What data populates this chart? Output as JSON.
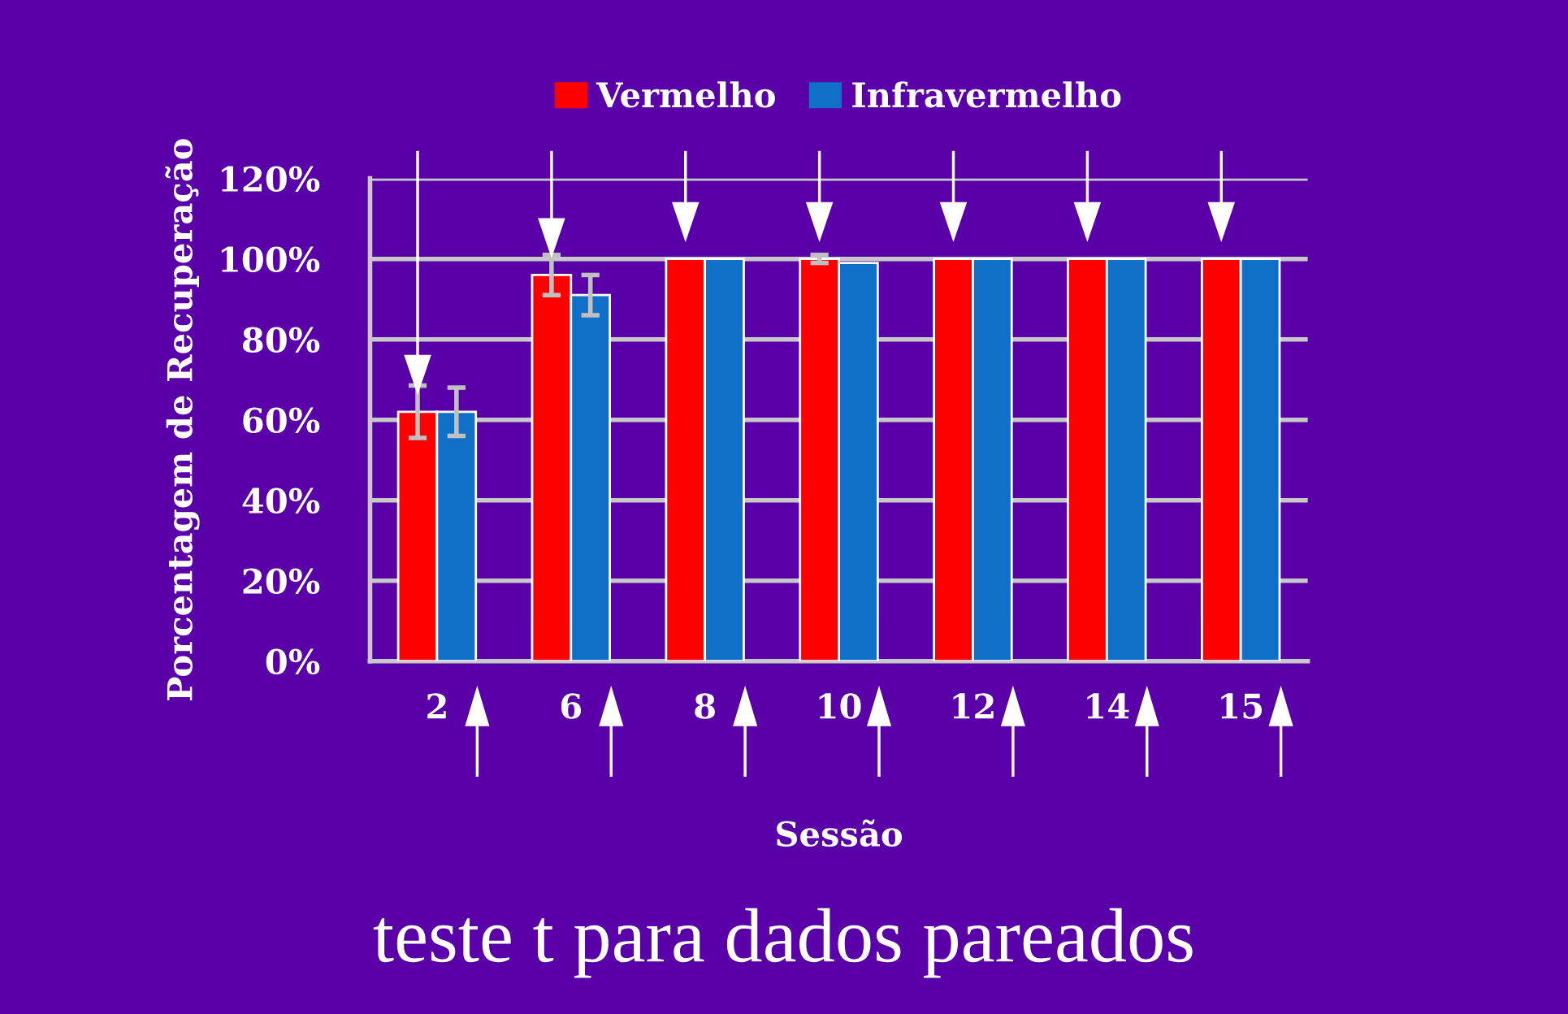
{
  "chart_data": {
    "type": "bar",
    "xlabel": "Sessão",
    "ylabel": "Porcentagem de Recuperação",
    "categories": [
      "2",
      "6",
      "8",
      "10",
      "12",
      "14",
      "15"
    ],
    "series": [
      {
        "name": "Vermelho",
        "color": "#ff0000",
        "values": [
          62,
          96,
          100,
          100,
          100,
          100,
          100
        ],
        "errors": [
          6.5,
          5,
          null,
          1,
          null,
          null,
          null
        ]
      },
      {
        "name": "Infravermelho",
        "color": "#1070c8",
        "values": [
          62,
          91,
          100,
          99,
          100,
          100,
          100
        ],
        "errors": [
          6,
          5,
          null,
          null,
          null,
          null,
          null
        ]
      }
    ],
    "ylim": [
      0,
      120
    ],
    "yticks": [
      {
        "value": 0,
        "label": "0%"
      },
      {
        "value": 20,
        "label": "20%"
      },
      {
        "value": 40,
        "label": "40%"
      },
      {
        "value": 60,
        "label": "60%"
      },
      {
        "value": 80,
        "label": "80%"
      },
      {
        "value": 100,
        "label": "100%"
      },
      {
        "value": 120,
        "label": "120%"
      }
    ],
    "grid": "y",
    "legend": "top",
    "annotations": [
      "teste t para dados pareados"
    ]
  }
}
